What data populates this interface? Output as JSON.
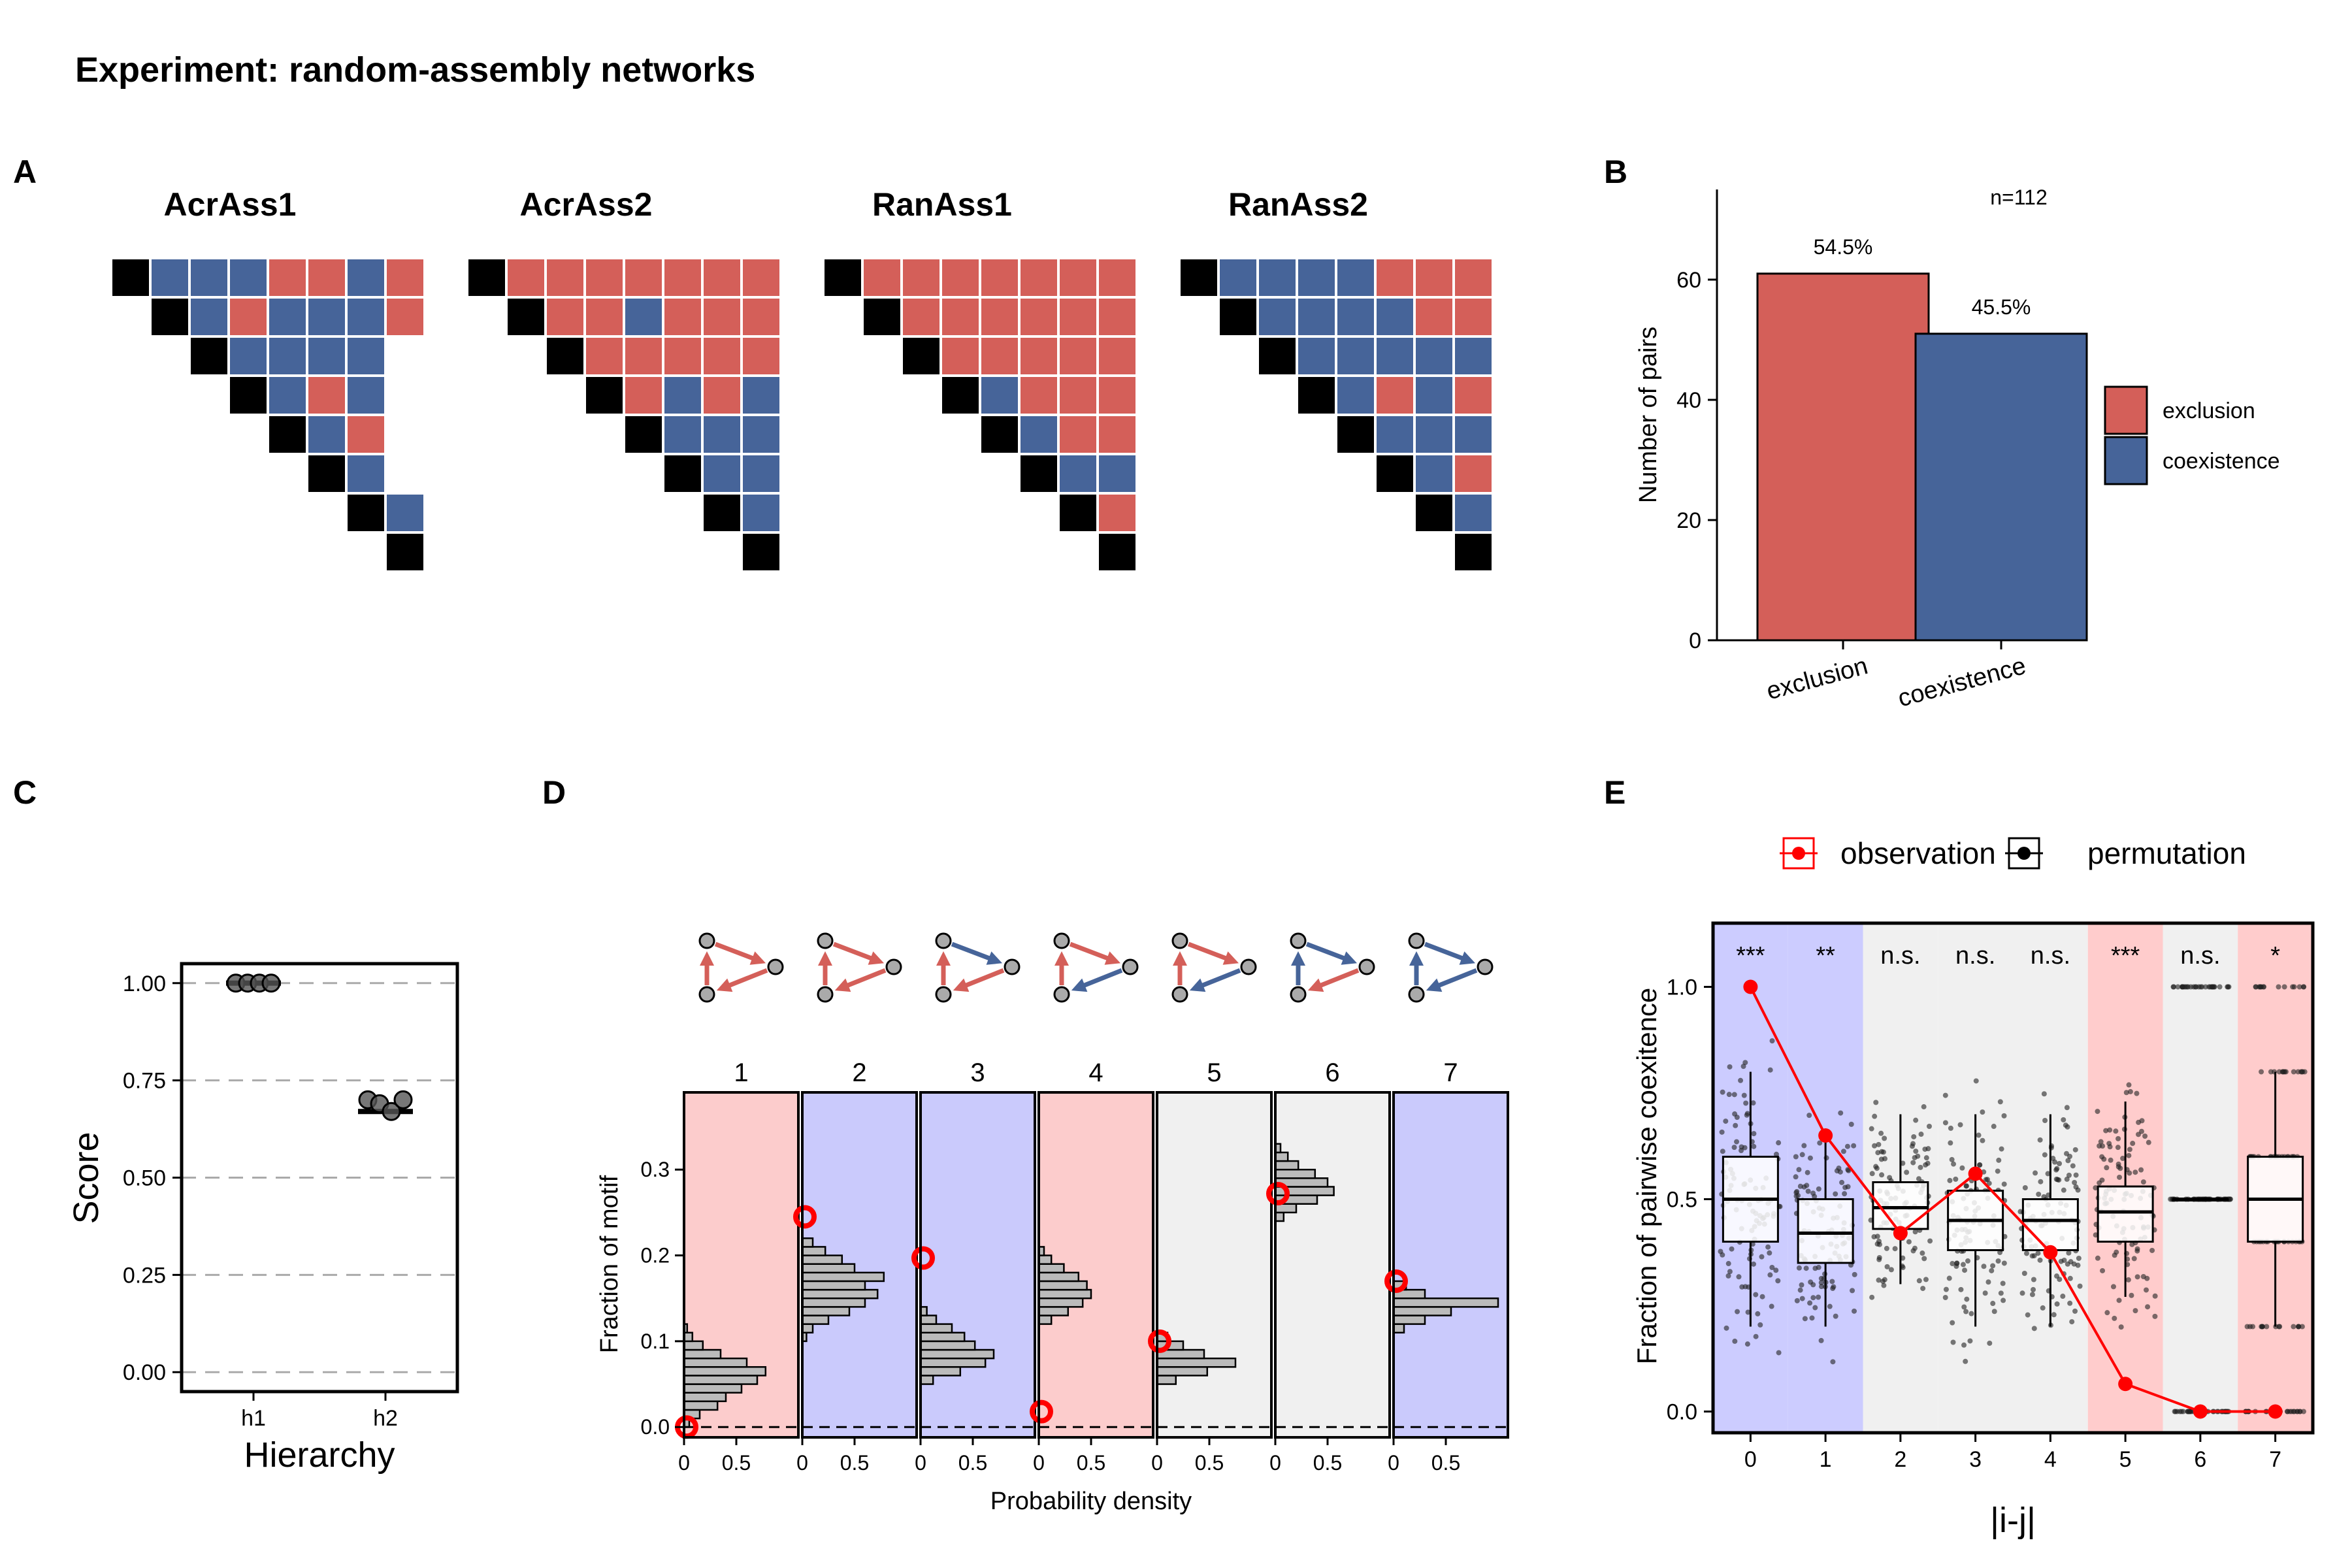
{
  "figure_title": "Experiment: random-assembly networks",
  "colors": {
    "exclusion": "#D45F59",
    "coexistence": "#466499",
    "black": "#000000"
  },
  "chart_data": [
    {
      "panel": "A",
      "type": "heatmap",
      "matrices": [
        {
          "name": "AcrAss1",
          "rows": [
            "BBBRRBR",
            "BRBBBR",
            "BBBB",
            "BRB",
            "BR",
            "B",
            "B",
            ""
          ]
        },
        {
          "name": "AcrAss2",
          "rows": [
            "RRRRRRR",
            "RRBRRR",
            "RRRRR",
            "RBRB",
            "BBB",
            "BB",
            "B",
            ""
          ]
        },
        {
          "name": "RanAss1",
          "rows": [
            "RRRRRRR",
            "RRRRRR",
            "RRRRR",
            "BRRR",
            "BRR",
            "BB",
            "R",
            ""
          ]
        },
        {
          "name": "RanAss2",
          "rows": [
            "BBBBRRR",
            "BBBBRR",
            "BBBBB",
            "BRBR",
            "BBB",
            "BR",
            "B",
            ""
          ]
        }
      ]
    },
    {
      "panel": "B",
      "type": "bar",
      "annotation": "n=112",
      "categories": [
        "exclusion",
        "coexistence"
      ],
      "values": [
        61,
        51
      ],
      "bar_labels": [
        "54.5%",
        "45.5%"
      ],
      "ylabel": "Number of pairs",
      "ylim": [
        0,
        75
      ],
      "yticks": [
        "0",
        "20",
        "40",
        "60"
      ],
      "legend": [
        "exclusion",
        "coexistence"
      ],
      "legend_position": "right"
    },
    {
      "panel": "C",
      "type": "scatter",
      "ylabel": "Score",
      "xlabel": "Hierarchy",
      "categories": [
        "h1",
        "h2"
      ],
      "yticks": [
        "0.00",
        "0.25",
        "0.50",
        "0.75",
        "1.00"
      ],
      "ylim": [
        -0.05,
        1.05
      ],
      "points": {
        "h1": [
          1.0,
          1.0,
          1.0,
          1.0
        ],
        "h2": [
          0.7,
          0.69,
          0.67,
          0.7
        ]
      },
      "grid": "horizontal dashed"
    },
    {
      "panel": "D",
      "type": "bar",
      "ylabel": "Fraction of motif",
      "xlabel": "Probability density",
      "xticks": [
        "0",
        "0.5"
      ],
      "yticks": [
        "0.0",
        "0.1",
        "0.2",
        "0.3"
      ],
      "ylim": [
        -0.012,
        0.39
      ],
      "motifs": [
        {
          "label": "1",
          "bg": "#FCCCCC",
          "arrows": [
            "R",
            "R",
            "R"
          ],
          "observed": 0.0,
          "hist": [
            [
              0.005,
              0.05
            ],
            [
              0.015,
              0.15
            ],
            [
              0.025,
              0.32
            ],
            [
              0.035,
              0.4
            ],
            [
              0.045,
              0.55
            ],
            [
              0.055,
              0.7
            ],
            [
              0.065,
              0.78
            ],
            [
              0.075,
              0.6
            ],
            [
              0.085,
              0.35
            ],
            [
              0.095,
              0.18
            ],
            [
              0.105,
              0.08
            ],
            [
              0.115,
              0.03
            ]
          ]
        },
        {
          "label": "2",
          "bg": "#CACAFC",
          "arrows": [
            "R",
            "R",
            "R"
          ],
          "observed": 0.245,
          "hist": [
            [
              0.105,
              0.04
            ],
            [
              0.115,
              0.1
            ],
            [
              0.125,
              0.25
            ],
            [
              0.135,
              0.45
            ],
            [
              0.145,
              0.6
            ],
            [
              0.155,
              0.72
            ],
            [
              0.165,
              0.6
            ],
            [
              0.175,
              0.78
            ],
            [
              0.185,
              0.5
            ],
            [
              0.195,
              0.38
            ],
            [
              0.205,
              0.22
            ],
            [
              0.215,
              0.1
            ]
          ]
        },
        {
          "label": "3",
          "bg": "#CACAFC",
          "arrows": [
            "R",
            "B",
            "R"
          ],
          "observed": 0.197,
          "hist": [
            [
              0.055,
              0.12
            ],
            [
              0.065,
              0.38
            ],
            [
              0.075,
              0.62
            ],
            [
              0.085,
              0.7
            ],
            [
              0.095,
              0.52
            ],
            [
              0.105,
              0.42
            ],
            [
              0.115,
              0.3
            ],
            [
              0.125,
              0.15
            ],
            [
              0.135,
              0.06
            ]
          ]
        },
        {
          "label": "4",
          "bg": "#FCCCCC",
          "arrows": [
            "R",
            "R",
            "B"
          ],
          "observed": 0.018,
          "hist": [
            [
              0.125,
              0.12
            ],
            [
              0.135,
              0.28
            ],
            [
              0.145,
              0.42
            ],
            [
              0.155,
              0.5
            ],
            [
              0.165,
              0.46
            ],
            [
              0.175,
              0.38
            ],
            [
              0.185,
              0.24
            ],
            [
              0.195,
              0.12
            ],
            [
              0.205,
              0.05
            ]
          ]
        },
        {
          "label": "5",
          "bg": "#F0F0F0",
          "arrows": [
            "R",
            "R",
            "B"
          ],
          "observed": 0.1,
          "hist": [
            [
              0.055,
              0.18
            ],
            [
              0.065,
              0.48
            ],
            [
              0.075,
              0.75
            ],
            [
              0.085,
              0.45
            ],
            [
              0.095,
              0.25
            ],
            [
              0.105,
              0.1
            ]
          ]
        },
        {
          "label": "6",
          "bg": "#F0F0F0",
          "arrows": [
            "B",
            "B",
            "R"
          ],
          "observed": 0.272,
          "hist": [
            [
              0.245,
              0.08
            ],
            [
              0.255,
              0.2
            ],
            [
              0.265,
              0.4
            ],
            [
              0.275,
              0.56
            ],
            [
              0.285,
              0.5
            ],
            [
              0.295,
              0.38
            ],
            [
              0.305,
              0.22
            ],
            [
              0.315,
              0.12
            ],
            [
              0.325,
              0.05
            ]
          ]
        },
        {
          "label": "7",
          "bg": "#CACAFC",
          "arrows": [
            "B",
            "B",
            "B"
          ],
          "observed": 0.17,
          "hist": [
            [
              0.115,
              0.1
            ],
            [
              0.125,
              0.3
            ],
            [
              0.135,
              0.55
            ],
            [
              0.145,
              1.0
            ],
            [
              0.155,
              0.3
            ],
            [
              0.165,
              0.12
            ]
          ]
        }
      ]
    },
    {
      "panel": "E",
      "type": "box",
      "xlabel": "|i-j|",
      "ylabel": "Fraction of pairwise coexitence",
      "categories": [
        "0",
        "1",
        "2",
        "3",
        "4",
        "5",
        "6",
        "7"
      ],
      "yticks": [
        "0.0",
        "0.5",
        "1.0"
      ],
      "ylim": [
        -0.05,
        1.15
      ],
      "significance": [
        "***",
        "**",
        "n.s.",
        "n.s.",
        "n.s.",
        "***",
        "n.s.",
        "*"
      ],
      "bands": [
        "#CCCCFF",
        "#CCCCFF",
        "#F0F0F0",
        "#F0F0F0",
        "#F0F0F0",
        "#FFCCCC",
        "#F0F0F0",
        "#FFCCCC"
      ],
      "observation": [
        1.0,
        0.65,
        0.42,
        0.56,
        0.375,
        0.065,
        0.0,
        0.0
      ],
      "boxes": [
        {
          "q1": 0.4,
          "med": 0.5,
          "q3": 0.6,
          "lo": 0.2,
          "hi": 0.8
        },
        {
          "q1": 0.35,
          "med": 0.42,
          "q3": 0.5,
          "lo": 0.2,
          "hi": 0.65
        },
        {
          "q1": 0.43,
          "med": 0.48,
          "q3": 0.54,
          "lo": 0.3,
          "hi": 0.7
        },
        {
          "q1": 0.38,
          "med": 0.45,
          "q3": 0.52,
          "lo": 0.2,
          "hi": 0.7
        },
        {
          "q1": 0.38,
          "med": 0.45,
          "q3": 0.5,
          "lo": 0.2,
          "hi": 0.7
        },
        {
          "q1": 0.4,
          "med": 0.47,
          "q3": 0.53,
          "lo": 0.27,
          "hi": 0.73
        },
        {
          "q1": 0.5,
          "med": 0.5,
          "q3": 0.5,
          "lo": 0.5,
          "hi": 0.5
        },
        {
          "q1": 0.4,
          "med": 0.5,
          "q3": 0.6,
          "lo": 0.2,
          "hi": 0.8
        }
      ],
      "legend": [
        "observation",
        "permutation"
      ],
      "legend_position": "top"
    }
  ],
  "panel_labels": [
    "A",
    "B",
    "C",
    "D",
    "E"
  ]
}
